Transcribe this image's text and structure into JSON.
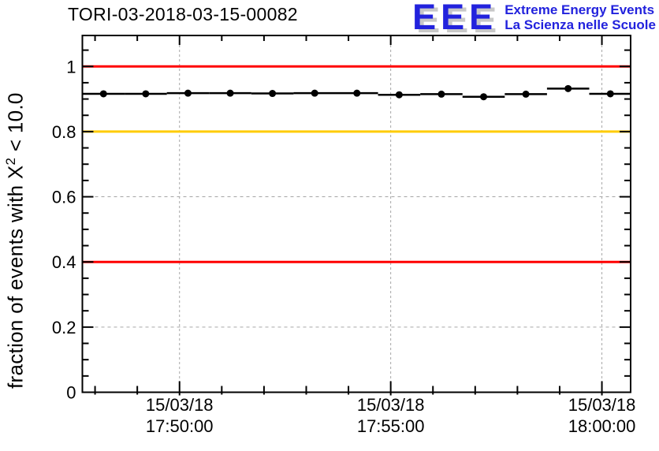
{
  "chart_data": {
    "type": "line",
    "title": "TORI-03-2018-03-15-00082",
    "ylabel": "fraction of events with X^2 < 10.0",
    "ylabel_parts": {
      "prefix": "fraction of events with X",
      "sup": "2",
      "suffix": " < 10.0"
    },
    "xlabel": "",
    "ylim": [
      0,
      1.095
    ],
    "x_range_minutes_after_1700": [
      47.7,
      60.68
    ],
    "grid": true,
    "background": "#ffffff",
    "axis_color": "#000000",
    "grid_color": "#a6a6a6",
    "y_axis": {
      "major_ticks": [
        {
          "v": 1.0,
          "label": "1"
        },
        {
          "v": 0.8,
          "label": "0.8"
        },
        {
          "v": 0.6,
          "label": "0.6"
        },
        {
          "v": 0.4,
          "label": "0.4"
        },
        {
          "v": 0.2,
          "label": "0.2"
        },
        {
          "v": 0.0,
          "label": "0"
        }
      ],
      "minor_step": 0.05
    },
    "x_axis": {
      "major_ticks": [
        {
          "minute": 50,
          "date": "15/03/18",
          "time": "17:50:00"
        },
        {
          "minute": 55,
          "date": "15/03/18",
          "time": "17:55:00"
        },
        {
          "minute": 60,
          "date": "15/03/18",
          "time": "18:00:00"
        }
      ],
      "minor_step_minutes": 1,
      "minor_range_minutes": [
        48,
        60
      ]
    },
    "reference_lines": [
      {
        "y": 1.0,
        "color": "#ff0000"
      },
      {
        "y": 0.8,
        "color": "#ffcc00"
      },
      {
        "y": 0.4,
        "color": "#ff0000"
      }
    ],
    "series": [
      {
        "name": "fraction of events with chi2 < 10.0",
        "marker": "filled-circle",
        "color": "#000000",
        "x_half_width_minutes": 0.5,
        "points": [
          {
            "time": "17:48",
            "minute": 48.2,
            "value": 0.916
          },
          {
            "time": "17:49",
            "minute": 49.2,
            "value": 0.916
          },
          {
            "time": "17:50",
            "minute": 50.2,
            "value": 0.918
          },
          {
            "time": "17:51",
            "minute": 51.2,
            "value": 0.918
          },
          {
            "time": "17:52",
            "minute": 52.2,
            "value": 0.917
          },
          {
            "time": "17:53",
            "minute": 53.2,
            "value": 0.918
          },
          {
            "time": "17:54",
            "minute": 54.2,
            "value": 0.918
          },
          {
            "time": "17:55",
            "minute": 55.2,
            "value": 0.913
          },
          {
            "time": "17:56",
            "minute": 56.2,
            "value": 0.915
          },
          {
            "time": "17:57",
            "minute": 57.2,
            "value": 0.907
          },
          {
            "time": "17:58",
            "minute": 58.2,
            "value": 0.915
          },
          {
            "time": "17:59",
            "minute": 59.2,
            "value": 0.932
          },
          {
            "time": "18:00",
            "minute": 60.2,
            "value": 0.916
          }
        ]
      }
    ]
  },
  "logo": {
    "acronym": "EEE",
    "tagline_line1": "Extreme Energy Events",
    "tagline_line2": "La Scienza nelle Scuole",
    "text_color": "#2222dd",
    "shadow_color": "#c8c8c8"
  }
}
